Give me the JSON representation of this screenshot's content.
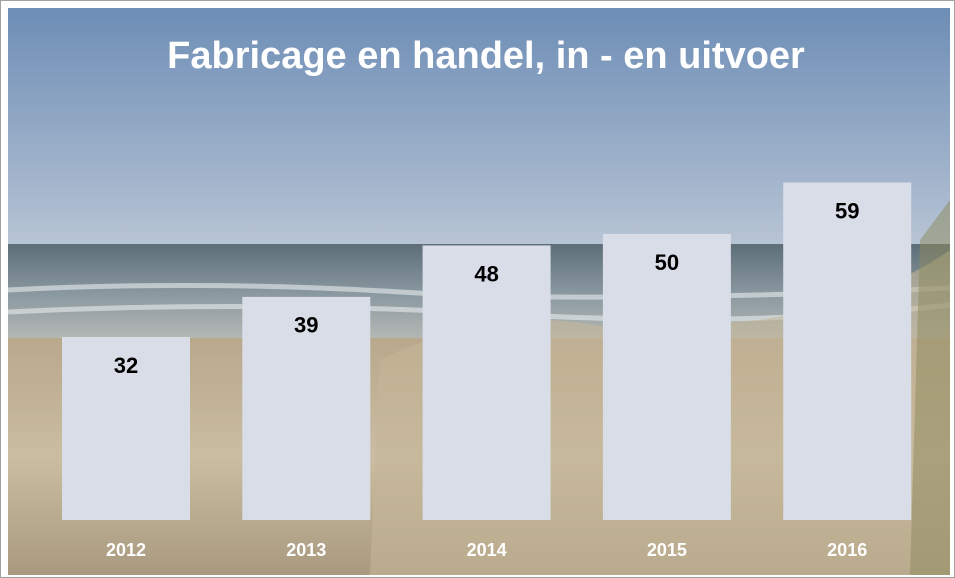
{
  "chart_data": {
    "type": "bar",
    "title": "Fabricage en handel, in - en uitvoer",
    "categories": [
      "2012",
      "2013",
      "2014",
      "2015",
      "2016"
    ],
    "values": [
      32,
      39,
      48,
      50,
      59
    ],
    "color": "#d9dde8"
  }
}
